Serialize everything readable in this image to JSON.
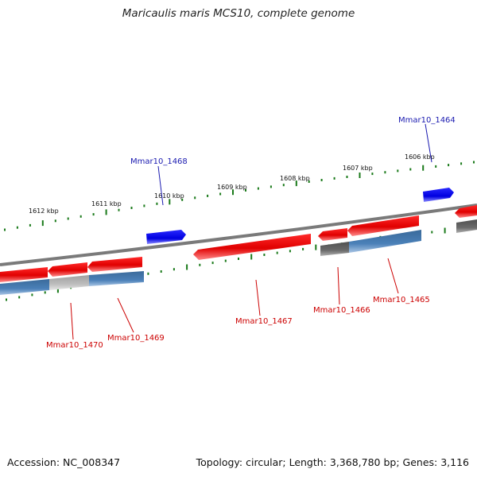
{
  "title": "Maricaulis maris MCS10, complete genome",
  "footer": {
    "accession": "Accession: NC_008347",
    "summary": "Topology: circular; Length: 3,368,780 bp; Genes: 3,116"
  },
  "colors": {
    "forward_gene": "#ff0000",
    "reverse_gene": "#0000ff",
    "cds_bar": "#4a7fb5",
    "gray_bar": "#6a6a6a",
    "light_bar": "#b8b8b8",
    "backbone": "#808080",
    "tick": "#1a7a1a",
    "label_red": "#cc0000",
    "label_blue": "#1a1ab0"
  },
  "scale_labels": [
    "1612 kbp",
    "1611 kbp",
    "1610 kbp",
    "1609 kbp",
    "1608 kbp",
    "1607 kbp",
    "1606 kbp"
  ],
  "gene_labels": {
    "g1464": "Mmar10_1464",
    "g1468": "Mmar10_1468",
    "g1467": "Mmar10_1467",
    "g1466": "Mmar10_1466",
    "g1465": "Mmar10_1465",
    "g1469": "Mmar10_1469",
    "g1470": "Mmar10_1470"
  }
}
